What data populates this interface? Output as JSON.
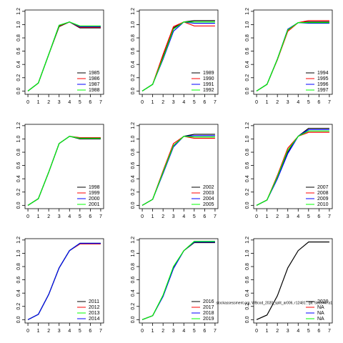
{
  "chart_data": [
    {
      "type": "line",
      "x": [
        0,
        1,
        2,
        3,
        4,
        5,
        6,
        7
      ],
      "xlim": [
        -0.28,
        7.28
      ],
      "ylim": [
        -0.05,
        1.22
      ],
      "xticks": [
        0,
        1,
        2,
        3,
        4,
        5,
        6,
        7
      ],
      "yticks": [
        {
          "value": 0,
          "label": "0.0"
        },
        {
          "value": 0.2,
          "label": "0.2"
        },
        {
          "value": 0.4,
          "label": "0.4"
        },
        {
          "value": 0.6,
          "label": "0.6"
        },
        {
          "value": 0.8,
          "label": "0.8"
        },
        {
          "value": 1,
          "label": "1.0"
        },
        {
          "value": 1.2,
          "label": "1.2"
        }
      ],
      "legend": "bottom-right",
      "series": [
        {
          "name": "1985",
          "color": "#000000",
          "values": [
            0,
            0.12,
            0.55,
            0.97,
            1.04,
            0.95,
            0.95,
            0.95
          ]
        },
        {
          "name": "1986",
          "color": "#ff0000",
          "values": [
            0,
            0.12,
            0.55,
            0.98,
            1.04,
            0.96,
            0.96,
            0.96
          ]
        },
        {
          "name": "1987",
          "color": "#0000ff",
          "values": [
            0,
            0.12,
            0.55,
            0.99,
            1.04,
            0.97,
            0.97,
            0.97
          ]
        },
        {
          "name": "1988",
          "color": "#00ff00",
          "values": [
            0,
            0.12,
            0.55,
            0.99,
            1.04,
            0.98,
            0.98,
            0.98
          ]
        }
      ]
    },
    {
      "type": "line",
      "x": [
        0,
        1,
        2,
        3,
        4,
        5,
        6,
        7
      ],
      "xlim": [
        -0.28,
        7.28
      ],
      "ylim": [
        -0.05,
        1.22
      ],
      "xticks": [
        0,
        1,
        2,
        3,
        4,
        5,
        6,
        7
      ],
      "yticks": [
        {
          "value": 0,
          "label": "0.0"
        },
        {
          "value": 0.2,
          "label": "0.2"
        },
        {
          "value": 0.4,
          "label": "0.4"
        },
        {
          "value": 0.6,
          "label": "0.6"
        },
        {
          "value": 0.8,
          "label": "0.8"
        },
        {
          "value": 1,
          "label": "1.0"
        },
        {
          "value": 1.2,
          "label": "1.2"
        }
      ],
      "legend": "bottom-right",
      "series": [
        {
          "name": "1989",
          "color": "#000000",
          "values": [
            0,
            0.1,
            0.52,
            0.95,
            1.04,
            1.06,
            1.06,
            1.06
          ]
        },
        {
          "name": "1990",
          "color": "#ff0000",
          "values": [
            0,
            0.1,
            0.55,
            0.97,
            1.04,
            0.98,
            0.98,
            0.98
          ]
        },
        {
          "name": "1991",
          "color": "#0000ff",
          "values": [
            0,
            0.1,
            0.48,
            0.9,
            1.04,
            1.02,
            1.02,
            1.02
          ]
        },
        {
          "name": "1992",
          "color": "#00ff00",
          "values": [
            0,
            0.1,
            0.5,
            0.93,
            1.04,
            1.04,
            1.04,
            1.04
          ]
        }
      ]
    },
    {
      "type": "line",
      "x": [
        0,
        1,
        2,
        3,
        4,
        5,
        6,
        7
      ],
      "xlim": [
        -0.28,
        7.28
      ],
      "ylim": [
        -0.05,
        1.22
      ],
      "xticks": [
        0,
        1,
        2,
        3,
        4,
        5,
        6,
        7
      ],
      "yticks": [
        {
          "value": 0,
          "label": "0.0"
        },
        {
          "value": 0.2,
          "label": "0.2"
        },
        {
          "value": 0.4,
          "label": "0.4"
        },
        {
          "value": 0.6,
          "label": "0.6"
        },
        {
          "value": 0.8,
          "label": "0.8"
        },
        {
          "value": 1,
          "label": "1.0"
        },
        {
          "value": 1.2,
          "label": "1.2"
        }
      ],
      "legend": "bottom-right",
      "series": [
        {
          "name": "1994",
          "color": "#000000",
          "values": [
            0,
            0.1,
            0.48,
            0.92,
            1.03,
            1.04,
            1.04,
            1.04
          ]
        },
        {
          "name": "1995",
          "color": "#ff0000",
          "values": [
            0,
            0.1,
            0.47,
            0.9,
            1.03,
            1.06,
            1.06,
            1.06
          ]
        },
        {
          "name": "1996",
          "color": "#0000ff",
          "values": [
            0,
            0.1,
            0.48,
            0.93,
            1.03,
            1.02,
            1.02,
            1.02
          ]
        },
        {
          "name": "1997",
          "color": "#00ff00",
          "values": [
            0,
            0.1,
            0.48,
            0.92,
            1.03,
            1.03,
            1.03,
            1.03
          ]
        }
      ]
    },
    {
      "type": "line",
      "x": [
        0,
        1,
        2,
        3,
        4,
        5,
        6,
        7
      ],
      "xlim": [
        -0.28,
        7.28
      ],
      "ylim": [
        -0.05,
        1.22
      ],
      "xticks": [
        0,
        1,
        2,
        3,
        4,
        5,
        6,
        7
      ],
      "yticks": [
        {
          "value": 0,
          "label": "0.0"
        },
        {
          "value": 0.2,
          "label": "0.2"
        },
        {
          "value": 0.4,
          "label": "0.4"
        },
        {
          "value": 0.6,
          "label": "0.6"
        },
        {
          "value": 0.8,
          "label": "0.8"
        },
        {
          "value": 1,
          "label": "1.0"
        },
        {
          "value": 1.2,
          "label": "1.2"
        }
      ],
      "legend": "bottom-right",
      "series": [
        {
          "name": "1998",
          "color": "#000000",
          "values": [
            0,
            0.1,
            0.5,
            0.93,
            1.04,
            1.0,
            1.0,
            1.0
          ]
        },
        {
          "name": "1999",
          "color": "#ff0000",
          "values": [
            0,
            0.1,
            0.5,
            0.93,
            1.04,
            1.02,
            1.02,
            1.02
          ]
        },
        {
          "name": "2000",
          "color": "#0000ff",
          "values": [
            0,
            0.1,
            0.5,
            0.93,
            1.04,
            1.01,
            1.01,
            1.01
          ]
        },
        {
          "name": "2001",
          "color": "#00ff00",
          "values": [
            0,
            0.1,
            0.5,
            0.93,
            1.04,
            1.01,
            1.01,
            1.01
          ]
        }
      ]
    },
    {
      "type": "line",
      "x": [
        0,
        1,
        2,
        3,
        4,
        5,
        6,
        7
      ],
      "xlim": [
        -0.28,
        7.28
      ],
      "ylim": [
        -0.05,
        1.22
      ],
      "xticks": [
        0,
        1,
        2,
        3,
        4,
        5,
        6,
        7
      ],
      "yticks": [
        {
          "value": 0,
          "label": "0.0"
        },
        {
          "value": 0.2,
          "label": "0.2"
        },
        {
          "value": 0.4,
          "label": "0.4"
        },
        {
          "value": 0.6,
          "label": "0.6"
        },
        {
          "value": 0.8,
          "label": "0.8"
        },
        {
          "value": 1,
          "label": "1.0"
        },
        {
          "value": 1.2,
          "label": "1.2"
        }
      ],
      "legend": "bottom-right",
      "series": [
        {
          "name": "2002",
          "color": "#000000",
          "values": [
            0,
            0.09,
            0.5,
            0.9,
            1.04,
            1.07,
            1.07,
            1.07
          ]
        },
        {
          "name": "2003",
          "color": "#ff0000",
          "values": [
            0,
            0.09,
            0.52,
            0.93,
            1.04,
            1.01,
            1.01,
            1.01
          ]
        },
        {
          "name": "2004",
          "color": "#0000ff",
          "values": [
            0,
            0.09,
            0.48,
            0.88,
            1.04,
            1.05,
            1.05,
            1.05
          ]
        },
        {
          "name": "2005",
          "color": "#00ff00",
          "values": [
            0,
            0.09,
            0.5,
            0.9,
            1.04,
            1.03,
            1.03,
            1.03
          ]
        }
      ]
    },
    {
      "type": "line",
      "x": [
        0,
        1,
        2,
        3,
        4,
        5,
        6,
        7
      ],
      "xlim": [
        -0.28,
        7.28
      ],
      "ylim": [
        -0.05,
        1.22
      ],
      "xticks": [
        0,
        1,
        2,
        3,
        4,
        5,
        6,
        7
      ],
      "yticks": [
        {
          "value": 0,
          "label": "0.0"
        },
        {
          "value": 0.2,
          "label": "0.2"
        },
        {
          "value": 0.4,
          "label": "0.4"
        },
        {
          "value": 0.6,
          "label": "0.6"
        },
        {
          "value": 0.8,
          "label": "0.8"
        },
        {
          "value": 1,
          "label": "1.0"
        },
        {
          "value": 1.2,
          "label": "1.2"
        }
      ],
      "legend": "bottom-right",
      "series": [
        {
          "name": "2007",
          "color": "#000000",
          "values": [
            0,
            0.08,
            0.42,
            0.8,
            1.04,
            1.16,
            1.16,
            1.16
          ]
        },
        {
          "name": "2008",
          "color": "#ff0000",
          "values": [
            0,
            0.08,
            0.45,
            0.86,
            1.04,
            1.1,
            1.1,
            1.1
          ]
        },
        {
          "name": "2009",
          "color": "#0000ff",
          "values": [
            0,
            0.08,
            0.4,
            0.78,
            1.04,
            1.14,
            1.14,
            1.14
          ]
        },
        {
          "name": "2010",
          "color": "#00ff00",
          "values": [
            0,
            0.08,
            0.43,
            0.83,
            1.04,
            1.12,
            1.12,
            1.12
          ]
        }
      ]
    },
    {
      "type": "line",
      "x": [
        0,
        1,
        2,
        3,
        4,
        5,
        6,
        7
      ],
      "xlim": [
        -0.28,
        7.28
      ],
      "ylim": [
        -0.05,
        1.22
      ],
      "xticks": [
        0,
        1,
        2,
        3,
        4,
        5,
        6,
        7
      ],
      "yticks": [
        {
          "value": 0,
          "label": "0.0"
        },
        {
          "value": 0.2,
          "label": "0.2"
        },
        {
          "value": 0.4,
          "label": "0.4"
        },
        {
          "value": 0.6,
          "label": "0.6"
        },
        {
          "value": 0.8,
          "label": "0.8"
        },
        {
          "value": 1,
          "label": "1.0"
        },
        {
          "value": 1.2,
          "label": "1.2"
        }
      ],
      "legend": "bottom-right",
      "series": [
        {
          "name": "2011",
          "color": "#000000",
          "values": [
            0,
            0.08,
            0.38,
            0.78,
            1.04,
            1.15,
            1.15,
            1.15
          ]
        },
        {
          "name": "2012",
          "color": "#ff0000",
          "values": [
            0,
            0.08,
            0.38,
            0.78,
            1.04,
            1.14,
            1.14,
            1.14
          ]
        },
        {
          "name": "2013",
          "color": "#00ff00",
          "values": [
            0,
            0.08,
            0.38,
            0.78,
            1.04,
            1.15,
            1.15,
            1.15
          ]
        },
        {
          "name": "2014",
          "color": "#0000ff",
          "values": [
            0,
            0.08,
            0.38,
            0.78,
            1.04,
            1.15,
            1.15,
            1.15
          ]
        }
      ]
    },
    {
      "type": "line",
      "x": [
        0,
        1,
        2,
        3,
        4,
        5,
        6,
        7
      ],
      "xlim": [
        -0.28,
        7.28
      ],
      "ylim": [
        -0.05,
        1.22
      ],
      "xticks": [
        0,
        1,
        2,
        3,
        4,
        5,
        6,
        7
      ],
      "yticks": [
        {
          "value": 0,
          "label": "0.0"
        },
        {
          "value": 0.2,
          "label": "0.2"
        },
        {
          "value": 0.4,
          "label": "0.4"
        },
        {
          "value": 0.6,
          "label": "0.6"
        },
        {
          "value": 0.8,
          "label": "0.8"
        },
        {
          "value": 1,
          "label": "1.0"
        },
        {
          "value": 1.2,
          "label": "1.2"
        }
      ],
      "legend": "bottom-right",
      "series": [
        {
          "name": "2016",
          "color": "#000000",
          "values": [
            0,
            0.06,
            0.36,
            0.78,
            1.04,
            1.16,
            1.16,
            1.16
          ]
        },
        {
          "name": "2017",
          "color": "#ff0000",
          "values": [
            0,
            0.06,
            0.36,
            0.78,
            1.04,
            1.17,
            1.17,
            1.17
          ]
        },
        {
          "name": "2018",
          "color": "#0000ff",
          "values": [
            0,
            0.06,
            0.35,
            0.77,
            1.04,
            1.17,
            1.17,
            1.17
          ]
        },
        {
          "name": "2019",
          "color": "#00ff00",
          "values": [
            0,
            0.06,
            0.37,
            0.8,
            1.04,
            1.18,
            1.18,
            1.18
          ]
        }
      ]
    },
    {
      "type": "line",
      "x": [
        0,
        1,
        2,
        3,
        4,
        5,
        6,
        7
      ],
      "xlim": [
        -0.28,
        7.28
      ],
      "ylim": [
        -0.05,
        1.22
      ],
      "xticks": [
        0,
        1,
        2,
        3,
        4,
        5,
        6,
        7
      ],
      "yticks": [
        {
          "value": 0,
          "label": "0.0"
        },
        {
          "value": 0.2,
          "label": "0.2"
        },
        {
          "value": 0.4,
          "label": "0.4"
        },
        {
          "value": 0.6,
          "label": "0.6"
        },
        {
          "value": 0.8,
          "label": "0.8"
        },
        {
          "value": 1,
          "label": "1.0"
        },
        {
          "value": 1.2,
          "label": "1.2"
        }
      ],
      "legend": "bottom-right",
      "annotation": "stockassessment.org, WBcod_2020_split_ar006, r12481 , git: 5b33447a1",
      "series": [
        {
          "name": "2020",
          "color": "#000000",
          "values": [
            0,
            0.07,
            0.36,
            0.78,
            1.04,
            1.17,
            1.17,
            1.17
          ]
        },
        {
          "name": "NA",
          "color": "#ff0000",
          "values": [
            null,
            null,
            null,
            null,
            null,
            null,
            null,
            null
          ]
        },
        {
          "name": "NA",
          "color": "#0000ff",
          "values": [
            null,
            null,
            null,
            null,
            null,
            null,
            null,
            null
          ]
        },
        {
          "name": "NA",
          "color": "#00ff00",
          "values": [
            null,
            null,
            null,
            null,
            null,
            null,
            null,
            null
          ]
        }
      ]
    }
  ]
}
